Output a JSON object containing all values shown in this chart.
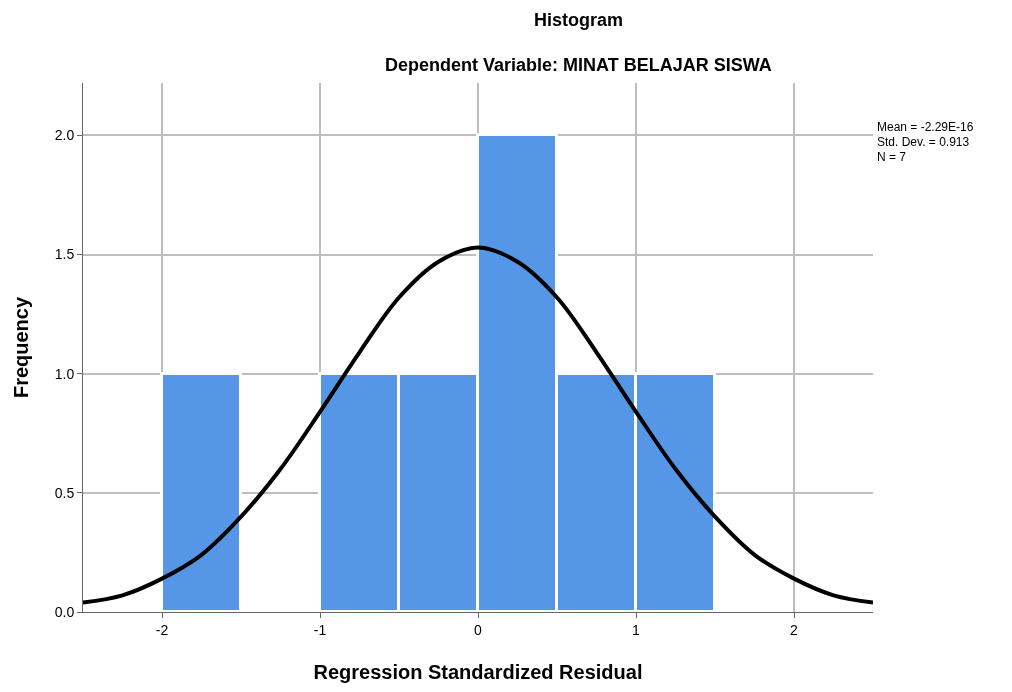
{
  "chart_data": {
    "type": "histogram",
    "title": "Histogram",
    "subtitle": "Dependent Variable: MINAT BELAJAR SISWA",
    "xlabel": "Regression Standardized Residual",
    "ylabel": "Frequency",
    "bins": [
      -2,
      -1.5,
      -1,
      -0.5,
      0,
      0.5,
      1,
      1.5
    ],
    "values": [
      1,
      0,
      1,
      1,
      2,
      1,
      1
    ],
    "color": "#5596e6",
    "series": [
      {
        "type": "line",
        "color": "#000000",
        "x": [
          -2.5,
          -2.25,
          -2,
          -1.75,
          -1.5,
          -1.25,
          -1,
          -0.75,
          -0.5,
          -0.25,
          0,
          0.25,
          0.5,
          0.75,
          1,
          1.25,
          1.5,
          1.75,
          2,
          2.25,
          2.5
        ],
        "values": [
          0.04,
          0.07,
          0.14,
          0.24,
          0.4,
          0.6,
          0.84,
          1.09,
          1.32,
          1.47,
          1.53,
          1.47,
          1.32,
          1.09,
          0.84,
          0.6,
          0.4,
          0.24,
          0.14,
          0.07,
          0.04
        ]
      }
    ],
    "xlim": [
      -2.5,
      2.5
    ],
    "xticks": [
      -2,
      -1,
      0,
      1,
      2
    ],
    "ylim": [
      0,
      2.22
    ],
    "yticks": [
      {
        "value": 0,
        "label": "0.0"
      },
      {
        "value": 0.5,
        "label": "0.5"
      },
      {
        "value": 1,
        "label": "1.0"
      },
      {
        "value": 1.5,
        "label": "1.5"
      },
      {
        "value": 2,
        "label": "2.0"
      }
    ],
    "grid": true,
    "annotations": [
      "Mean = -2.29E-16",
      "Std. Dev. = 0.913",
      "N = 7"
    ]
  }
}
